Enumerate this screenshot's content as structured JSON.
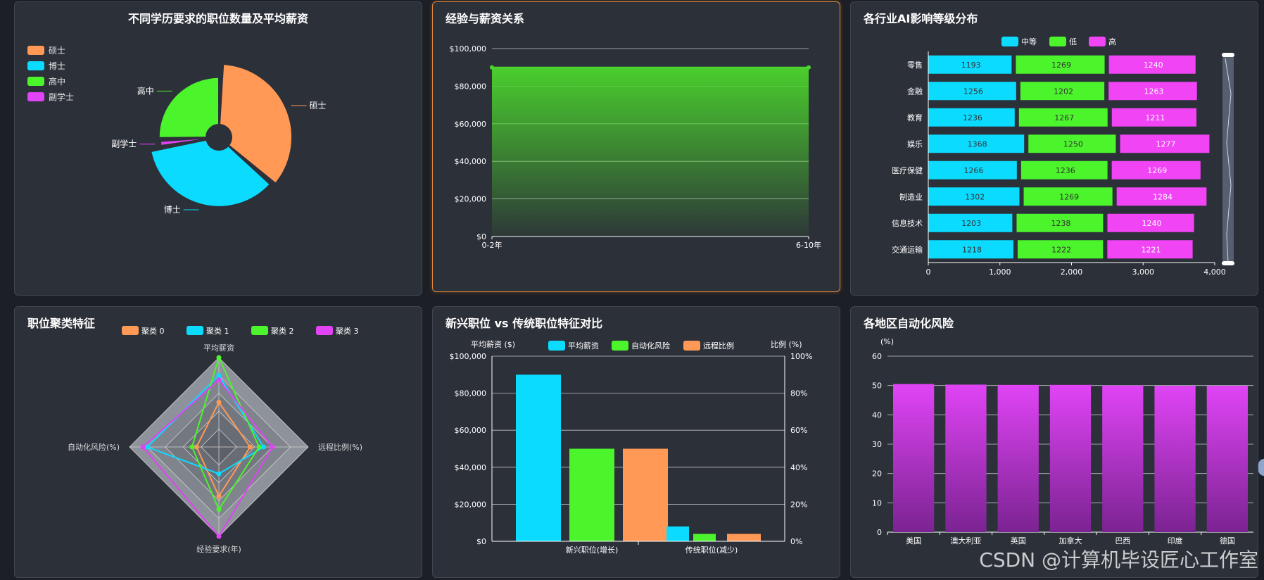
{
  "panels": {
    "edu": {
      "title": "不同学历要求的职位数量及平均薪资"
    },
    "exp": {
      "title": "经验与薪资关系"
    },
    "ind": {
      "title": "各行业AI影响等级分布"
    },
    "cluster": {
      "title": "职位聚类特征"
    },
    "newold": {
      "title": "新兴职位 vs 传统职位特征对比"
    },
    "region": {
      "title": "各地区自动化风险"
    }
  },
  "watermark": "CSDN @计算机毕设匠心工作室",
  "chart_data": [
    {
      "id": "edu",
      "type": "pie",
      "title": "不同学历要求的职位数量及平均薪资",
      "legend": [
        "硕士",
        "博士",
        "高中",
        "副学士"
      ],
      "slices": [
        {
          "name": "硕士",
          "value": 33,
          "color": "#ff9955"
        },
        {
          "name": "博士",
          "value": 33,
          "color": "#0bdcff"
        },
        {
          "name": "副学士",
          "value": 2,
          "color": "#e044f5"
        },
        {
          "name": "高中",
          "value": 24,
          "color": "#4cf42c"
        }
      ],
      "radius_values": [
        1.0,
        0.95,
        0.8,
        0.82
      ]
    },
    {
      "id": "exp",
      "type": "area",
      "title": "经验与薪资关系",
      "x": [
        "0-2年",
        "6-10年"
      ],
      "values": [
        90000,
        90000
      ],
      "ylim": [
        0,
        100000
      ],
      "yticks": [
        "$0",
        "$20,000",
        "$40,000",
        "$60,000",
        "$80,000",
        "$100,000"
      ],
      "color": "#4cd62c"
    },
    {
      "id": "ind",
      "type": "bar",
      "stacked": true,
      "orientation": "horizontal",
      "title": "各行业AI影响等级分布",
      "categories": [
        "零售",
        "金融",
        "教育",
        "娱乐",
        "医疗保健",
        "制造业",
        "信息技术",
        "交通运输"
      ],
      "series": [
        {
          "name": "中等",
          "color": "#0bdcff",
          "values": [
            1193,
            1256,
            1236,
            1368,
            1266,
            1302,
            1203,
            1218
          ]
        },
        {
          "name": "低",
          "color": "#4cf42c",
          "values": [
            1269,
            1202,
            1267,
            1250,
            1236,
            1269,
            1238,
            1222
          ]
        },
        {
          "name": "高",
          "color": "#f044f5",
          "values": [
            1240,
            1263,
            1211,
            1277,
            1269,
            1284,
            1240,
            1221
          ]
        }
      ],
      "xlim": [
        0,
        4000
      ],
      "xticks": [
        "0",
        "1,000",
        "2,000",
        "3,000",
        "4,000"
      ]
    },
    {
      "id": "cluster",
      "type": "radar",
      "title": "职位聚类特征",
      "axes": [
        "平均薪资",
        "远程比例(%)",
        "经验要求(年)",
        "自动化风险(%)"
      ],
      "series": [
        {
          "name": "聚类 0",
          "color": "#ff9955",
          "values": [
            0.5,
            0.35,
            0.55,
            0.25
          ]
        },
        {
          "name": "聚类 1",
          "color": "#0bdcff",
          "values": [
            0.8,
            0.5,
            0.3,
            0.8
          ]
        },
        {
          "name": "聚类 2",
          "color": "#4cf42c",
          "values": [
            1.0,
            0.45,
            0.7,
            0.3
          ]
        },
        {
          "name": "聚类 3",
          "color": "#e044f5",
          "values": [
            0.75,
            0.6,
            1.0,
            0.85
          ]
        }
      ]
    },
    {
      "id": "newold",
      "type": "bar",
      "title": "新兴职位 vs 传统职位特征对比",
      "categories": [
        "新兴职位(增长)",
        "传统职位(减少)"
      ],
      "series": [
        {
          "name": "平均薪资",
          "color": "#0bdcff",
          "axis": "left",
          "values": [
            90000,
            8000
          ]
        },
        {
          "name": "自动化风险",
          "color": "#4cf42c",
          "axis": "right",
          "values": [
            50,
            4
          ]
        },
        {
          "name": "远程比例",
          "color": "#ff9955",
          "axis": "right",
          "values": [
            50,
            4
          ]
        }
      ],
      "ylabel": "平均薪资 ($)",
      "y2label": "比例 (%)",
      "ylim": [
        0,
        100000
      ],
      "y2lim": [
        0,
        100
      ],
      "yticks": [
        "$0",
        "$20,000",
        "$40,000",
        "$60,000",
        "$80,000",
        "$100,000"
      ],
      "y2ticks": [
        "0%",
        "20%",
        "40%",
        "60%",
        "80%",
        "100%"
      ]
    },
    {
      "id": "region",
      "type": "bar",
      "title": "各地区自动化风险",
      "ylabel": "(%)",
      "categories": [
        "美国",
        "澳大利亚",
        "英国",
        "加拿大",
        "巴西",
        "印度",
        "德国"
      ],
      "values": [
        50.5,
        50.3,
        50.2,
        50.2,
        50.0,
        49.9,
        49.9
      ],
      "ylim": [
        0,
        60
      ],
      "yticks": [
        "0",
        "10",
        "20",
        "30",
        "40",
        "50",
        "60"
      ],
      "color": "#e044f5"
    }
  ]
}
